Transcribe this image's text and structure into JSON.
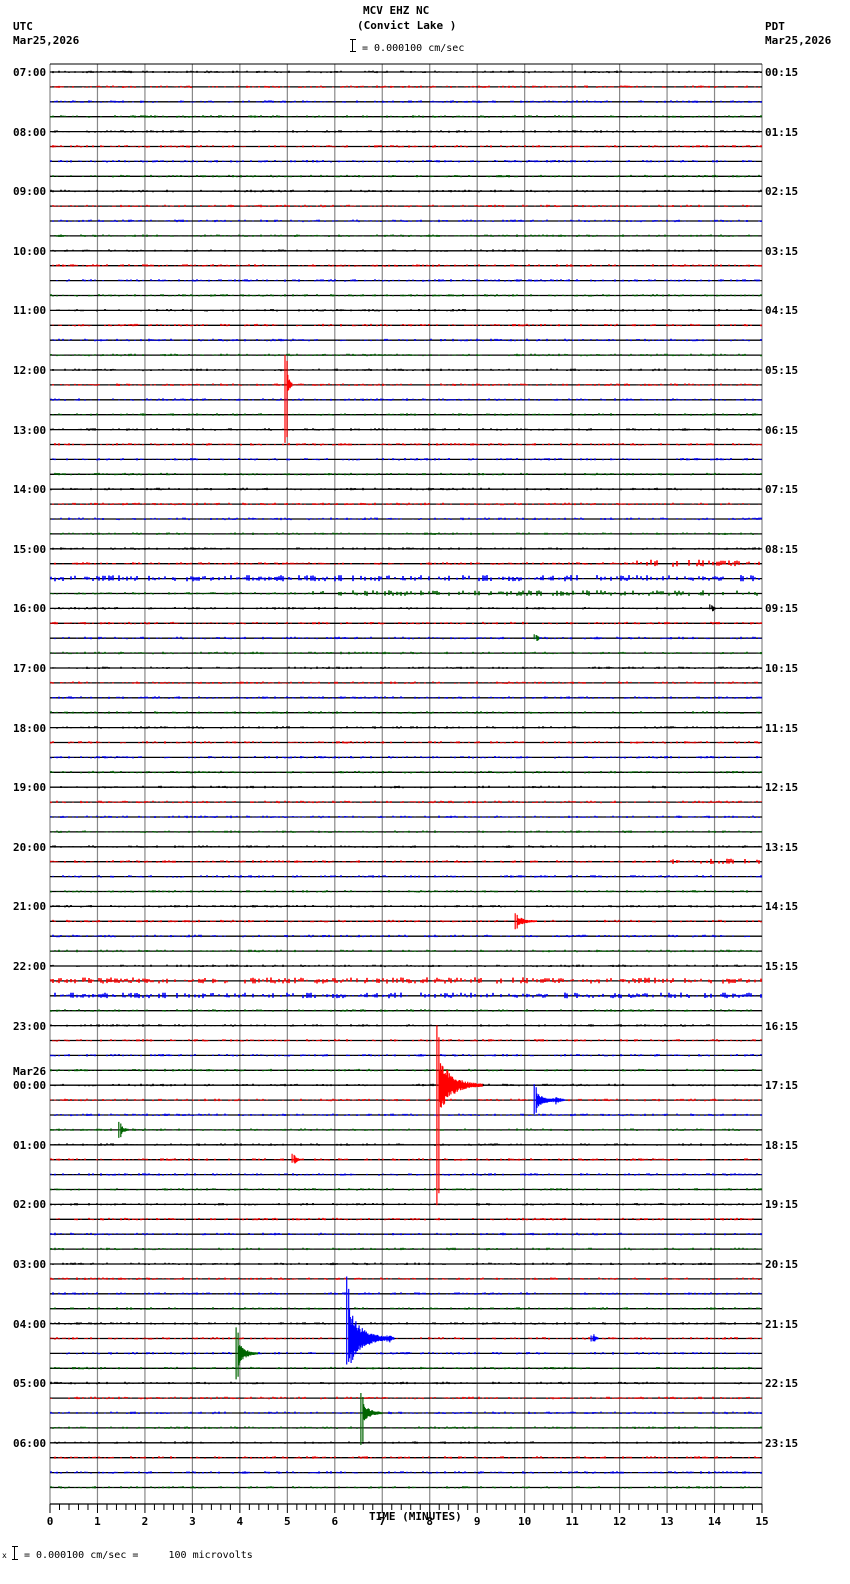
{
  "header": {
    "station": "MCV EHZ NC",
    "location": "(Convict Lake )",
    "scale_text": "= 0.000100 cm/sec",
    "left_tz": "UTC",
    "left_date": "Mar25,2026",
    "right_tz": "PDT",
    "right_date": "Mar25,2026"
  },
  "footer": {
    "scale_note": "= 0.000100 cm/sec =     100 microvolts",
    "mark": "x"
  },
  "chart_data": {
    "type": "line",
    "title": "MCV EHZ NC (Convict Lake )",
    "subtitle": "= 0.000100 cm/sec",
    "xlabel": "TIME (MINUTES)",
    "ylabel": "",
    "xlim": [
      0,
      15
    ],
    "x_ticks": [
      "0",
      "1",
      "2",
      "3",
      "4",
      "5",
      "6",
      "7",
      "8",
      "9",
      "10",
      "11",
      "12",
      "13",
      "14",
      "15"
    ],
    "grid": true,
    "trace_colors": [
      "#000000",
      "#ff0000",
      "#0000ff",
      "#006400"
    ],
    "traces_per_hour": 4,
    "minutes_per_trace": 15,
    "left_hour_labels": [
      "07:00",
      "08:00",
      "09:00",
      "10:00",
      "11:00",
      "12:00",
      "13:00",
      "14:00",
      "15:00",
      "16:00",
      "17:00",
      "18:00",
      "19:00",
      "20:00",
      "21:00",
      "22:00",
      "23:00",
      "00:00",
      "01:00",
      "02:00",
      "03:00",
      "04:00",
      "05:00",
      "06:00"
    ],
    "left_date_change": {
      "label": "Mar26",
      "before_hour": "00:00"
    },
    "right_hour_labels": [
      "00:15",
      "01:15",
      "02:15",
      "03:15",
      "04:15",
      "05:15",
      "06:15",
      "07:15",
      "08:15",
      "09:15",
      "10:15",
      "11:15",
      "12:15",
      "13:15",
      "14:15",
      "15:15",
      "16:15",
      "17:15",
      "18:15",
      "19:15",
      "20:15",
      "21:15",
      "22:15",
      "23:15"
    ],
    "events": [
      {
        "trace": 21,
        "minute": 4.95,
        "amp_up": 30,
        "amp_down": 58,
        "color_index": 1,
        "decay": 0.1
      },
      {
        "trace": 68,
        "minute": 8.15,
        "amp_up": 60,
        "amp_down": 120,
        "color_index": 1,
        "decay": 0.9
      },
      {
        "trace": 69,
        "minute": 10.2,
        "amp_up": 16,
        "amp_down": 14,
        "color_index": 2,
        "decay": 0.5
      },
      {
        "trace": 71,
        "minute": 1.45,
        "amp_up": 8,
        "amp_down": 8,
        "color_index": 3,
        "decay": 0.15
      },
      {
        "trace": 73,
        "minute": 5.1,
        "amp_up": 6,
        "amp_down": 3,
        "color_index": 1,
        "decay": 0.1
      },
      {
        "trace": 85,
        "minute": 6.25,
        "amp_up": 62,
        "amp_down": 26,
        "color_index": 2,
        "decay": 0.9
      },
      {
        "trace": 86,
        "minute": 3.92,
        "amp_up": 26,
        "amp_down": 26,
        "color_index": 3,
        "decay": 0.4
      },
      {
        "trace": 90,
        "minute": 6.55,
        "amp_up": 20,
        "amp_down": 32,
        "color_index": 3,
        "decay": 0.4
      },
      {
        "trace": 57,
        "minute": 9.8,
        "amp_up": 8,
        "amp_down": 8,
        "color_index": 1,
        "decay": 0.4
      },
      {
        "trace": 38,
        "minute": 10.2,
        "amp_up": 4,
        "amp_down": 1,
        "color_index": 3,
        "decay": 0.05
      },
      {
        "trace": 36,
        "minute": 13.9,
        "amp_up": 4,
        "amp_down": 1,
        "color_index": 0,
        "decay": 0.05
      },
      {
        "trace": 69,
        "minute": 10.6,
        "amp_up": 2,
        "amp_down": 2,
        "color_index": 2,
        "decay": 0.2
      },
      {
        "trace": 85,
        "minute": 7.1,
        "amp_up": 3,
        "amp_down": 3,
        "color_index": 2,
        "decay": 0.1
      },
      {
        "trace": 85,
        "minute": 11.4,
        "amp_up": 3,
        "amp_down": 3,
        "color_index": 2,
        "decay": 0.1
      }
    ],
    "noisy_segments": [
      {
        "trace": 33,
        "from": 12.3,
        "to": 15,
        "amp": 2.5
      },
      {
        "trace": 34,
        "from": 0,
        "to": 15,
        "amp": 2.2
      },
      {
        "trace": 35,
        "from": 5.5,
        "to": 15,
        "amp": 2.0
      },
      {
        "trace": 61,
        "from": 0,
        "to": 15,
        "amp": 2.2
      },
      {
        "trace": 62,
        "from": 0,
        "to": 15,
        "amp": 2.0
      },
      {
        "trace": 53,
        "from": 13,
        "to": 15,
        "amp": 2.0
      }
    ]
  }
}
